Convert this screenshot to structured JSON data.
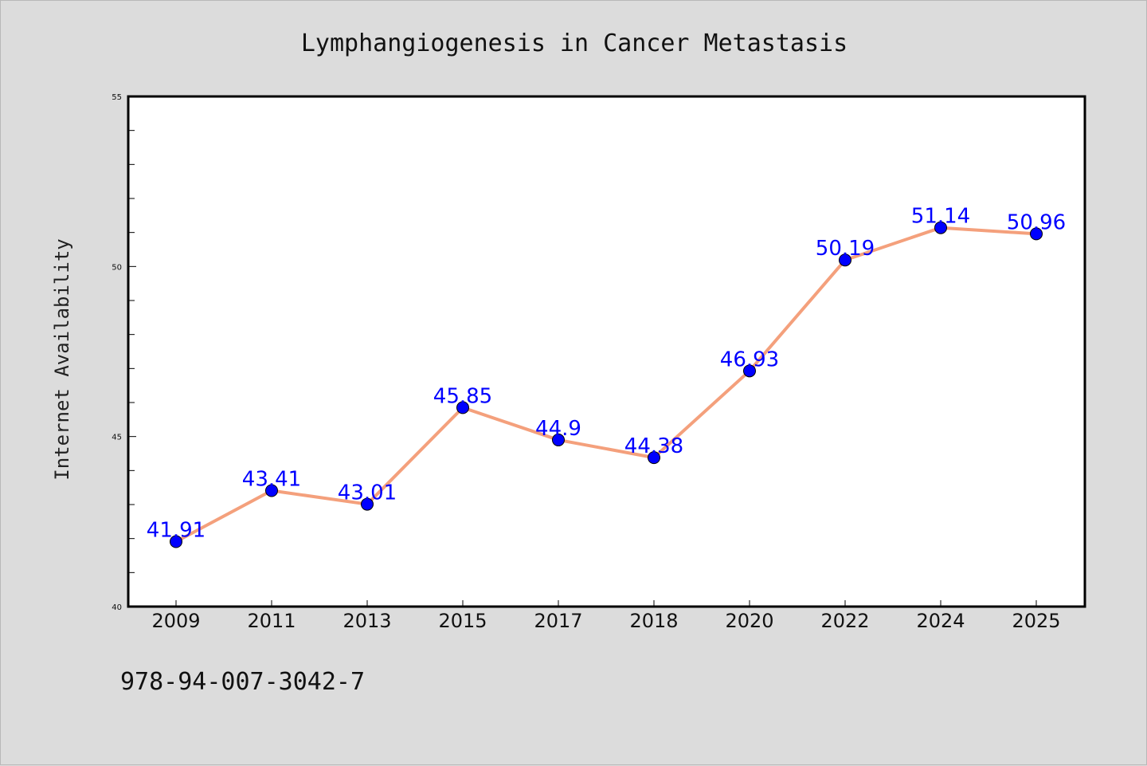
{
  "chart_data": {
    "type": "line",
    "title": "Lymphangiogenesis in Cancer Metastasis",
    "xlabel": "",
    "ylabel": "Internet Availability",
    "categories": [
      "2009",
      "2011",
      "2013",
      "2015",
      "2017",
      "2018",
      "2020",
      "2022",
      "2024",
      "2025"
    ],
    "series": [
      {
        "values": [
          41.91,
          43.41,
          43.01,
          45.85,
          44.9,
          44.38,
          46.93,
          50.19,
          51.14,
          50.96
        ],
        "labels": [
          "41.91",
          "43.41",
          "43.01",
          "45.85",
          "44.9",
          "44.38",
          "46.93",
          "50.19",
          "51.14",
          "50.96"
        ],
        "line_color": "#f4a07c",
        "marker_color": "#0000ff"
      }
    ],
    "ylim": [
      40,
      55
    ],
    "yticks": [
      "40",
      "45",
      "50",
      "55"
    ],
    "grid": false,
    "data_label_color": "#0000ff"
  },
  "footer_code": "978-94-007-3042-7",
  "colors": {
    "background": "#dcdcdc",
    "plot_background": "#ffffff",
    "axis": "#000000"
  }
}
